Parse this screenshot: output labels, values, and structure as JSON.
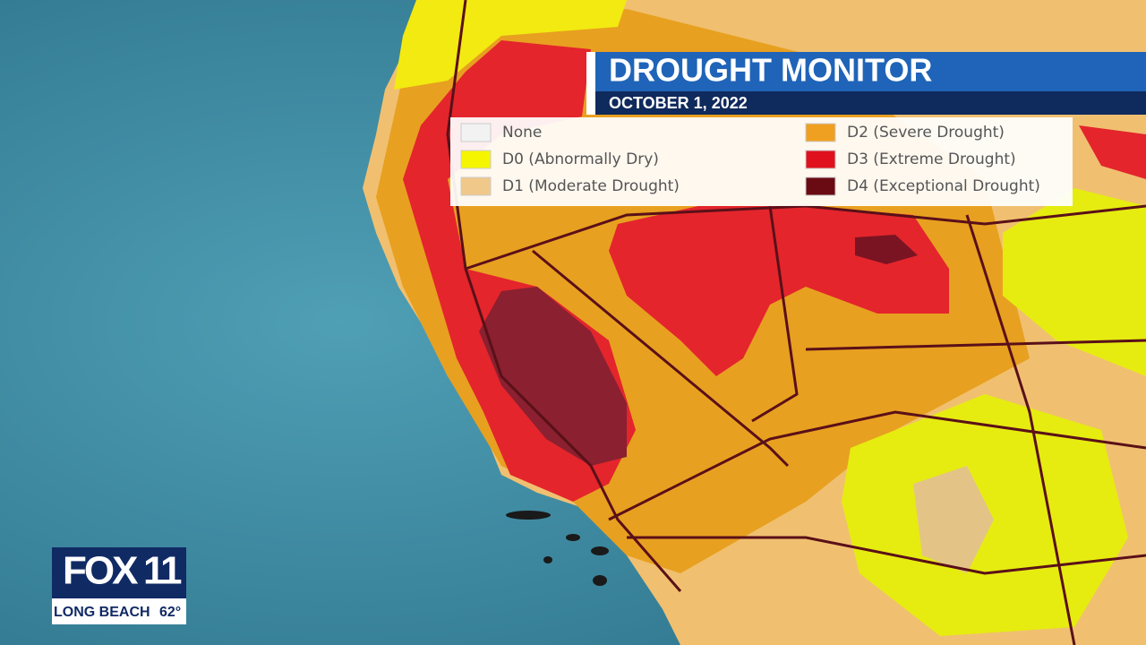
{
  "header": {
    "title": "DROUGHT MONITOR",
    "date": "OCTOBER 1, 2022"
  },
  "legend": {
    "items": [
      {
        "label": "None",
        "color": "#f2f2f2"
      },
      {
        "label": "D0 (Abnormally Dry)",
        "color": "#f5f500"
      },
      {
        "label": "D1 (Moderate Drought)",
        "color": "#f0c88a"
      },
      {
        "label": "D2 (Severe Drought)",
        "color": "#f0a020"
      },
      {
        "label": "D3 (Extreme Drought)",
        "color": "#e0101c"
      },
      {
        "label": "D4 (Exceptional Drought)",
        "color": "#6a0a12"
      }
    ]
  },
  "station": {
    "brand": "FOX",
    "channel": "11",
    "city": "LONG BEACH",
    "temperature": "62°"
  }
}
